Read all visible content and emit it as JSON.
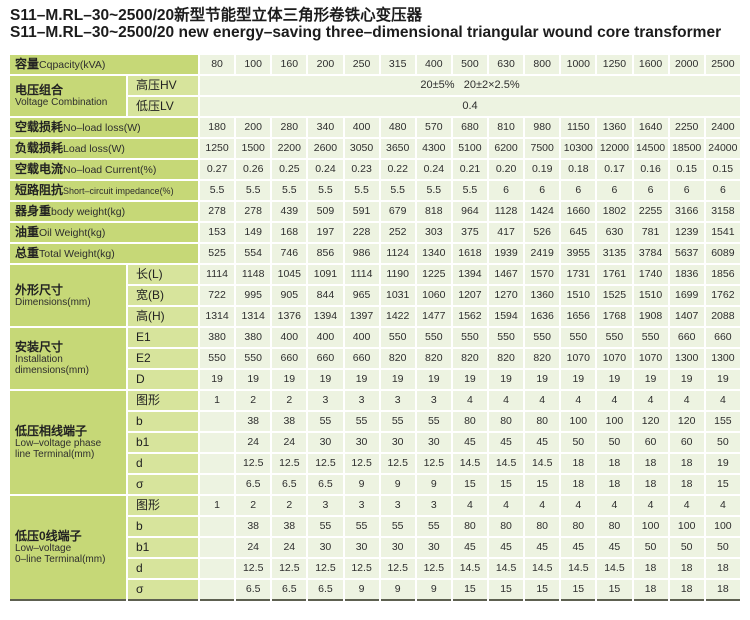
{
  "title": {
    "line_cn": "S11–M.RL–30~2500/20新型节能型立体三角形卷铁心变压器",
    "line_en": "S11–M.RL–30~2500/20 new energy–saving three–dimensional triangular wound core transformer"
  },
  "colors": {
    "label_bg": "#c6d877",
    "sublabel_bg": "#d7e49c",
    "cell_bg": "#edf3e1",
    "bottom_rule": "#5d6050"
  },
  "table": {
    "groups": [
      {
        "kind": "single",
        "zh": "容量",
        "en": "Cqpacity(kVA)",
        "values": [
          "80",
          "100",
          "160",
          "200",
          "250",
          "315",
          "400",
          "500",
          "630",
          "800",
          "1000",
          "1250",
          "1600",
          "2000",
          "2500"
        ]
      },
      {
        "kind": "group",
        "zh": "电压组合",
        "en": [
          "Voltage Combination"
        ],
        "rows": [
          {
            "sub": "高压HV",
            "merged": "20±5%   20±2×2.5%"
          },
          {
            "sub": "低压LV",
            "merged": "0.4"
          }
        ]
      },
      {
        "kind": "single",
        "zh": "空载损耗",
        "en": "No–load loss(W)",
        "values": [
          "180",
          "200",
          "280",
          "340",
          "400",
          "480",
          "570",
          "680",
          "810",
          "980",
          "1150",
          "1360",
          "1640",
          "2250",
          "2400"
        ]
      },
      {
        "kind": "single",
        "zh": "负载损耗",
        "en": "Load loss(W)",
        "values": [
          "1250",
          "1500",
          "2200",
          "2600",
          "3050",
          "3650",
          "4300",
          "5100",
          "6200",
          "7500",
          "10300",
          "12000",
          "14500",
          "18500",
          "24000"
        ]
      },
      {
        "kind": "single",
        "zh": "空载电流",
        "en": "No–load Current(%)",
        "values": [
          "0.27",
          "0.26",
          "0.25",
          "0.24",
          "0.23",
          "0.22",
          "0.24",
          "0.21",
          "0.20",
          "0.19",
          "0.18",
          "0.17",
          "0.16",
          "0.15",
          "0.15"
        ]
      },
      {
        "kind": "single",
        "zh": "短路阻抗",
        "en": "Short–circuit impedance(%)",
        "small_en": true,
        "values": [
          "5.5",
          "5.5",
          "5.5",
          "5.5",
          "5.5",
          "5.5",
          "5.5",
          "5.5",
          "6",
          "6",
          "6",
          "6",
          "6",
          "6",
          "6"
        ]
      },
      {
        "kind": "single",
        "zh": "器身重",
        "en": "body weight(kg)",
        "values": [
          "278",
          "278",
          "439",
          "509",
          "591",
          "679",
          "818",
          "964",
          "1128",
          "1424",
          "1660",
          "1802",
          "2255",
          "3166",
          "3158"
        ]
      },
      {
        "kind": "single",
        "zh": "油重",
        "en": "Oil Weight(kg)",
        "values": [
          "153",
          "149",
          "168",
          "197",
          "228",
          "252",
          "303",
          "375",
          "417",
          "526",
          "645",
          "630",
          "781",
          "1239",
          "1541"
        ]
      },
      {
        "kind": "single",
        "zh": "总重",
        "en": "Total Weight(kg)",
        "values": [
          "525",
          "554",
          "746",
          "856",
          "986",
          "1124",
          "1340",
          "1618",
          "1939",
          "2419",
          "3955",
          "3135",
          "3784",
          "5637",
          "6089"
        ]
      },
      {
        "kind": "group",
        "zh": "外形尺寸",
        "en": [
          "Dimensions(mm)"
        ],
        "rows": [
          {
            "sub": "长(L)",
            "values": [
              "1114",
              "1148",
              "1045",
              "1091",
              "1114",
              "1190",
              "1225",
              "1394",
              "1467",
              "1570",
              "1731",
              "1761",
              "1740",
              "1836",
              "1856"
            ]
          },
          {
            "sub": "宽(B)",
            "values": [
              "722",
              "995",
              "905",
              "844",
              "965",
              "1031",
              "1060",
              "1207",
              "1270",
              "1360",
              "1510",
              "1525",
              "1510",
              "1699",
              "1762"
            ]
          },
          {
            "sub": "高(H)",
            "values": [
              "1314",
              "1314",
              "1376",
              "1394",
              "1397",
              "1422",
              "1477",
              "1562",
              "1594",
              "1636",
              "1656",
              "1768",
              "1908",
              "1407",
              "2088"
            ]
          }
        ]
      },
      {
        "kind": "group",
        "zh": "安装尺寸",
        "en": [
          "Installation",
          "dimensions(mm)"
        ],
        "rows": [
          {
            "sub": "E1",
            "values": [
              "380",
              "380",
              "400",
              "400",
              "400",
              "550",
              "550",
              "550",
              "550",
              "550",
              "550",
              "550",
              "550",
              "660",
              "660"
            ]
          },
          {
            "sub": "E2",
            "values": [
              "550",
              "550",
              "660",
              "660",
              "660",
              "820",
              "820",
              "820",
              "820",
              "820",
              "1070",
              "1070",
              "1070",
              "1300",
              "1300"
            ]
          },
          {
            "sub": "D",
            "values": [
              "19",
              "19",
              "19",
              "19",
              "19",
              "19",
              "19",
              "19",
              "19",
              "19",
              "19",
              "19",
              "19",
              "19",
              "19"
            ]
          }
        ]
      },
      {
        "kind": "group",
        "zh": "低压相线端子",
        "en": [
          "Low–voltage phase",
          "line Terminal(mm)"
        ],
        "rows": [
          {
            "sub": "图形",
            "values": [
              "1",
              "2",
              "2",
              "3",
              "3",
              "3",
              "3",
              "4",
              "4",
              "4",
              "4",
              "4",
              "4",
              "4",
              "4"
            ]
          },
          {
            "sub": "b",
            "values": [
              "",
              "38",
              "38",
              "55",
              "55",
              "55",
              "55",
              "80",
              "80",
              "80",
              "100",
              "100",
              "120",
              "120",
              "155"
            ]
          },
          {
            "sub": "b1",
            "values": [
              "",
              "24",
              "24",
              "30",
              "30",
              "30",
              "30",
              "45",
              "45",
              "45",
              "50",
              "50",
              "60",
              "60",
              "50"
            ]
          },
          {
            "sub": "d",
            "values": [
              "",
              "12.5",
              "12.5",
              "12.5",
              "12.5",
              "12.5",
              "12.5",
              "14.5",
              "14.5",
              "14.5",
              "18",
              "18",
              "18",
              "18",
              "19"
            ]
          },
          {
            "sub": "σ",
            "values": [
              "",
              "6.5",
              "6.5",
              "6.5",
              "9",
              "9",
              "9",
              "15",
              "15",
              "15",
              "18",
              "18",
              "18",
              "18",
              "15"
            ]
          }
        ]
      },
      {
        "kind": "group",
        "zh": "低压0线端子",
        "en": [
          "Low–voltage",
          "0–line Terminal(mm)"
        ],
        "rows": [
          {
            "sub": "图形",
            "values": [
              "1",
              "2",
              "2",
              "3",
              "3",
              "3",
              "3",
              "4",
              "4",
              "4",
              "4",
              "4",
              "4",
              "4",
              "4"
            ]
          },
          {
            "sub": "b",
            "values": [
              "",
              "38",
              "38",
              "55",
              "55",
              "55",
              "55",
              "80",
              "80",
              "80",
              "80",
              "80",
              "100",
              "100",
              "100"
            ]
          },
          {
            "sub": "b1",
            "values": [
              "",
              "24",
              "24",
              "30",
              "30",
              "30",
              "30",
              "45",
              "45",
              "45",
              "45",
              "45",
              "50",
              "50",
              "50"
            ]
          },
          {
            "sub": "d",
            "values": [
              "",
              "12.5",
              "12.5",
              "12.5",
              "12.5",
              "12.5",
              "12.5",
              "14.5",
              "14.5",
              "14.5",
              "14.5",
              "14.5",
              "18",
              "18",
              "18"
            ]
          },
          {
            "sub": "σ",
            "values": [
              "",
              "6.5",
              "6.5",
              "6.5",
              "9",
              "9",
              "9",
              "15",
              "15",
              "15",
              "15",
              "15",
              "18",
              "18",
              "18"
            ]
          }
        ]
      }
    ]
  }
}
